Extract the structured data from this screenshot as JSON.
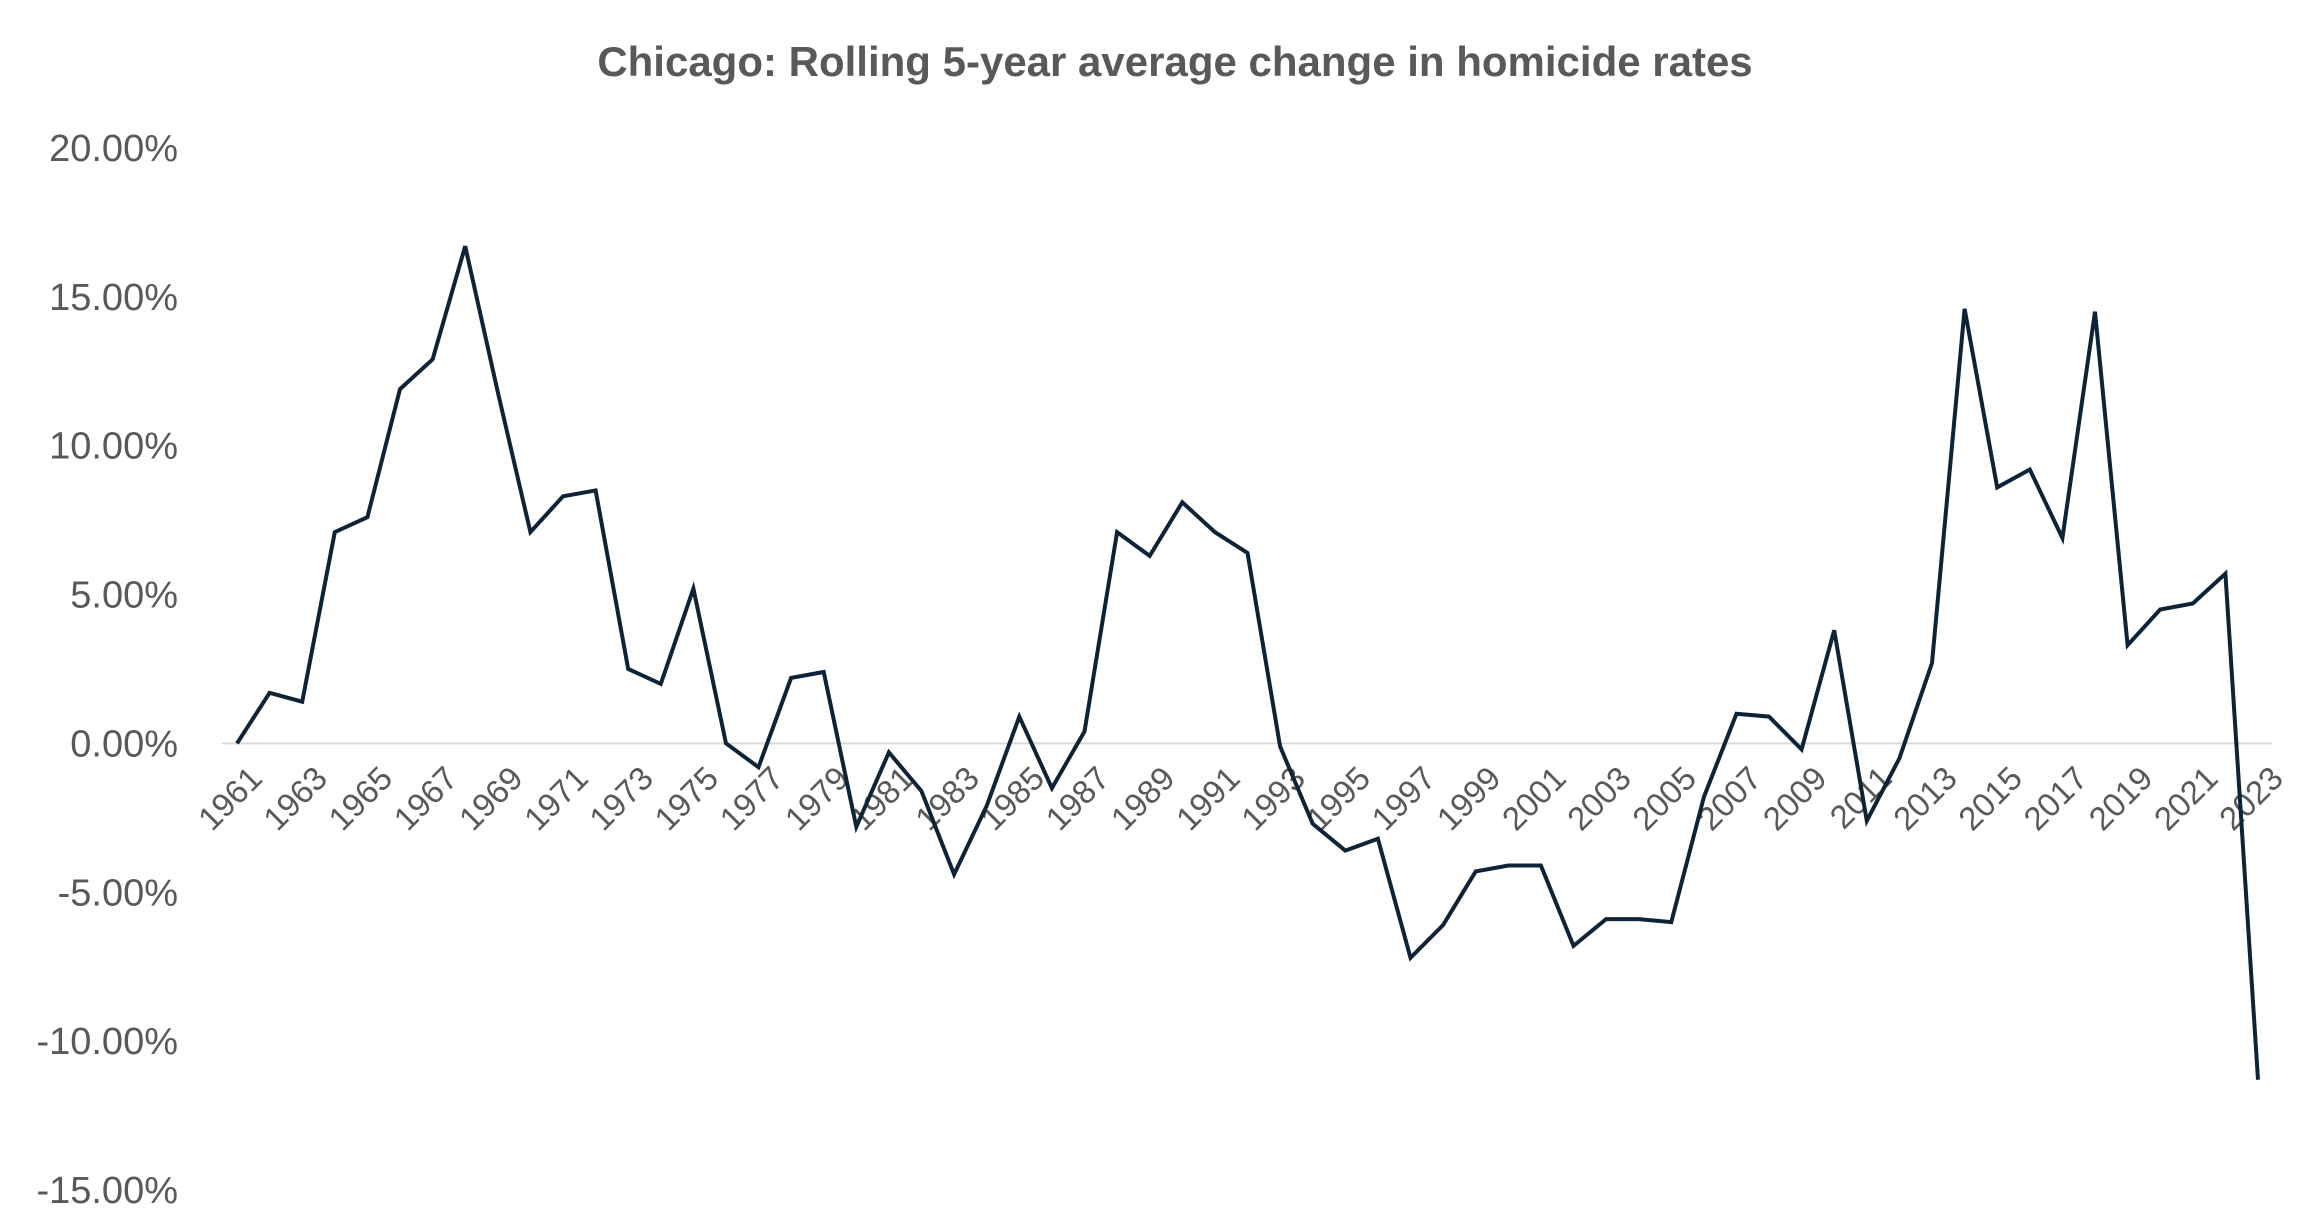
{
  "chart_data": {
    "type": "line",
    "title": "Chicago: Rolling 5-year average change in homicide rates",
    "xlabel": "",
    "ylabel": "",
    "ylim": [
      -0.15,
      0.2
    ],
    "y_tick_values": [
      0.2,
      0.15,
      0.1,
      0.05,
      0.0,
      -0.05,
      -0.1,
      -0.15
    ],
    "y_tick_labels": [
      "20.00%",
      "15.00%",
      "10.00%",
      "5.00%",
      "0.00%",
      "-5.00%",
      "-10.00%",
      "-15.00%"
    ],
    "x_tick_labels": [
      "1961",
      "1963",
      "1965",
      "1967",
      "1969",
      "1971",
      "1973",
      "1975",
      "1977",
      "1979",
      "1981",
      "1983",
      "1985",
      "1987",
      "1989",
      "1991",
      "1993",
      "1995",
      "1997",
      "1999",
      "2001",
      "2003",
      "2005",
      "2007",
      "2009",
      "2011",
      "2013",
      "2015",
      "2017",
      "2019",
      "2021",
      "2023"
    ],
    "grid": false,
    "legend": "none",
    "series": [
      {
        "color": "#0f2337",
        "x": [
          1961,
          1962,
          1963,
          1964,
          1965,
          1966,
          1967,
          1968,
          1969,
          1970,
          1971,
          1972,
          1973,
          1974,
          1975,
          1976,
          1977,
          1978,
          1979,
          1980,
          1981,
          1982,
          1983,
          1984,
          1985,
          1986,
          1987,
          1988,
          1989,
          1990,
          1991,
          1992,
          1993,
          1994,
          1995,
          1996,
          1997,
          1998,
          1999,
          2000,
          2001,
          2002,
          2003,
          2004,
          2005,
          2006,
          2007,
          2008,
          2009,
          2010,
          2011,
          2012,
          2013,
          2014,
          2015,
          2016,
          2017,
          2018,
          2019,
          2020,
          2021,
          2022,
          2023
        ],
        "values": [
          0.0,
          0.017,
          0.014,
          0.071,
          0.076,
          0.119,
          0.129,
          0.167,
          0.118,
          0.071,
          0.083,
          0.085,
          0.025,
          0.02,
          0.052,
          0.0,
          -0.008,
          0.022,
          0.024,
          -0.028,
          -0.003,
          -0.016,
          -0.044,
          -0.021,
          0.009,
          -0.015,
          0.004,
          0.071,
          0.063,
          0.081,
          0.071,
          0.064,
          -0.001,
          -0.027,
          -0.036,
          -0.032,
          -0.072,
          -0.061,
          -0.043,
          -0.041,
          -0.041,
          -0.068,
          -0.059,
          -0.059,
          -0.06,
          -0.018,
          0.01,
          0.009,
          -0.002,
          0.038,
          -0.026,
          -0.005,
          0.027,
          0.146,
          0.086,
          0.092,
          0.069,
          0.145,
          0.033,
          0.045,
          0.047,
          0.057,
          -0.113
        ]
      }
    ]
  }
}
